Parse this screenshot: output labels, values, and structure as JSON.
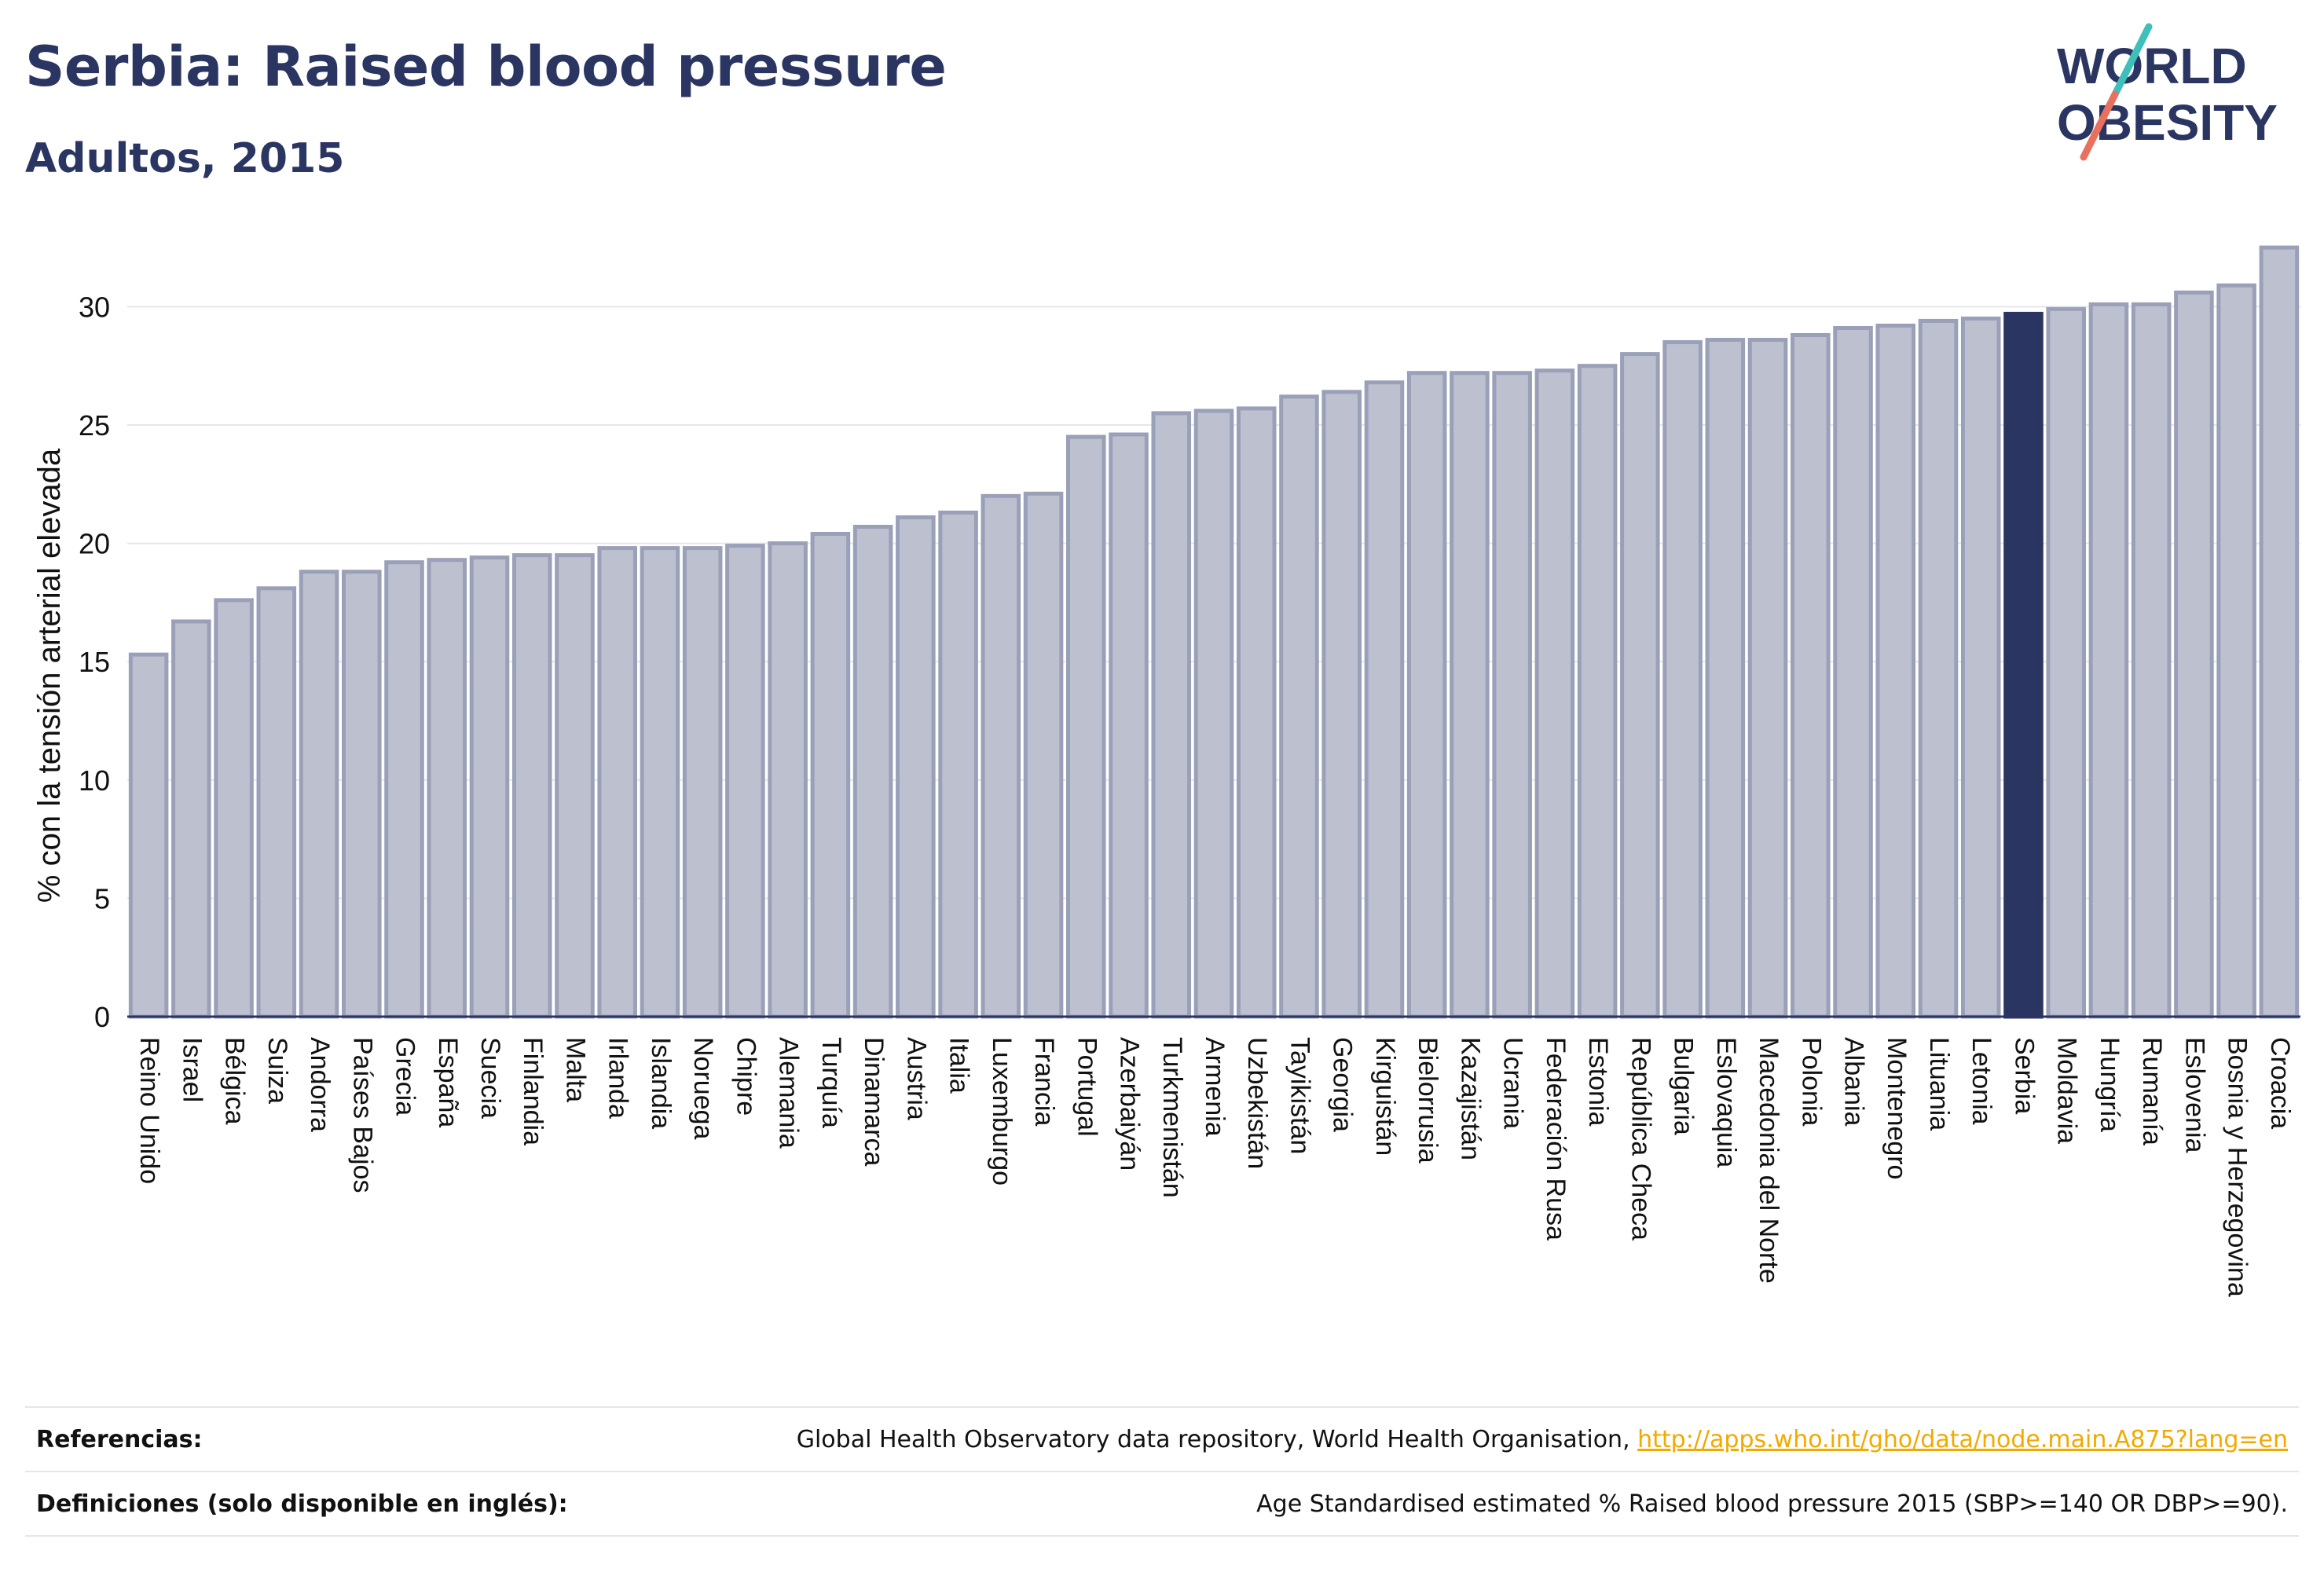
{
  "header": {
    "title": "Serbia: Raised blood pressure",
    "subtitle": "Adultos, 2015"
  },
  "logo": {
    "line1": "WORLD",
    "line2": "OBESITY",
    "icon": "world-obesity-logo"
  },
  "chart_data": {
    "type": "bar",
    "title": "",
    "xlabel": "",
    "ylabel": "% con la tensión arterial elevada",
    "ylim": [
      0,
      33
    ],
    "yticks": [
      0,
      5,
      10,
      15,
      20,
      25,
      30
    ],
    "grid": true,
    "legend": "none",
    "highlight": "Serbia",
    "colors": {
      "bar": "#bcc0cf",
      "bar_edge": "#9aa0b8",
      "highlight": "#2b3561",
      "grid": "#e3e6ec"
    },
    "categories": [
      "Reino Unido",
      "Israel",
      "Bélgica",
      "Suiza",
      "Andorra",
      "Países Bajos",
      "Grecia",
      "España",
      "Suecia",
      "Finlandia",
      "Malta",
      "Irlanda",
      "Islandia",
      "Noruega",
      "Chipre",
      "Alemania",
      "Turquía",
      "Dinamarca",
      "Austria",
      "Italia",
      "Luxemburgo",
      "Francia",
      "Portugal",
      "Azerbaiyán",
      "Turkmenistán",
      "Armenia",
      "Uzbekistán",
      "Tayikistán",
      "Georgia",
      "Kirguistán",
      "Bielorrusia",
      "Kazajistán",
      "Ucrania",
      "Federación Rusa",
      "Estonia",
      "República Checa",
      "Bulgaria",
      "Eslovaquia",
      "Macedonia del Norte",
      "Polonia",
      "Albania",
      "Montenegro",
      "Lituania",
      "Letonia",
      "Serbia",
      "Moldavia",
      "Hungría",
      "Rumanía",
      "Eslovenia",
      "Bosnia y Herzegovina",
      "Croacia"
    ],
    "values": [
      15.3,
      16.7,
      17.6,
      18.1,
      18.8,
      18.8,
      19.2,
      19.3,
      19.4,
      19.5,
      19.5,
      19.8,
      19.8,
      19.8,
      19.9,
      20.0,
      20.4,
      20.7,
      21.1,
      21.3,
      22.0,
      22.1,
      24.5,
      24.6,
      25.5,
      25.6,
      25.7,
      26.2,
      26.4,
      26.8,
      27.2,
      27.2,
      27.2,
      27.3,
      27.5,
      28.0,
      28.5,
      28.6,
      28.6,
      28.8,
      29.1,
      29.2,
      29.4,
      29.5,
      29.7,
      29.9,
      30.1,
      30.1,
      30.6,
      30.9,
      32.5
    ]
  },
  "footer": {
    "references_label": "Referencias:",
    "references_text": "Global Health Observatory data repository, World Health Organisation, ",
    "references_link": "http://apps.who.int/gho/data/node.main.A875?lang=en",
    "definitions_label": "Definiciones (solo disponible en inglés):",
    "definitions_text": "Age Standardised estimated % Raised blood pressure 2015 (SBP>=140 OR DBP>=90)."
  }
}
